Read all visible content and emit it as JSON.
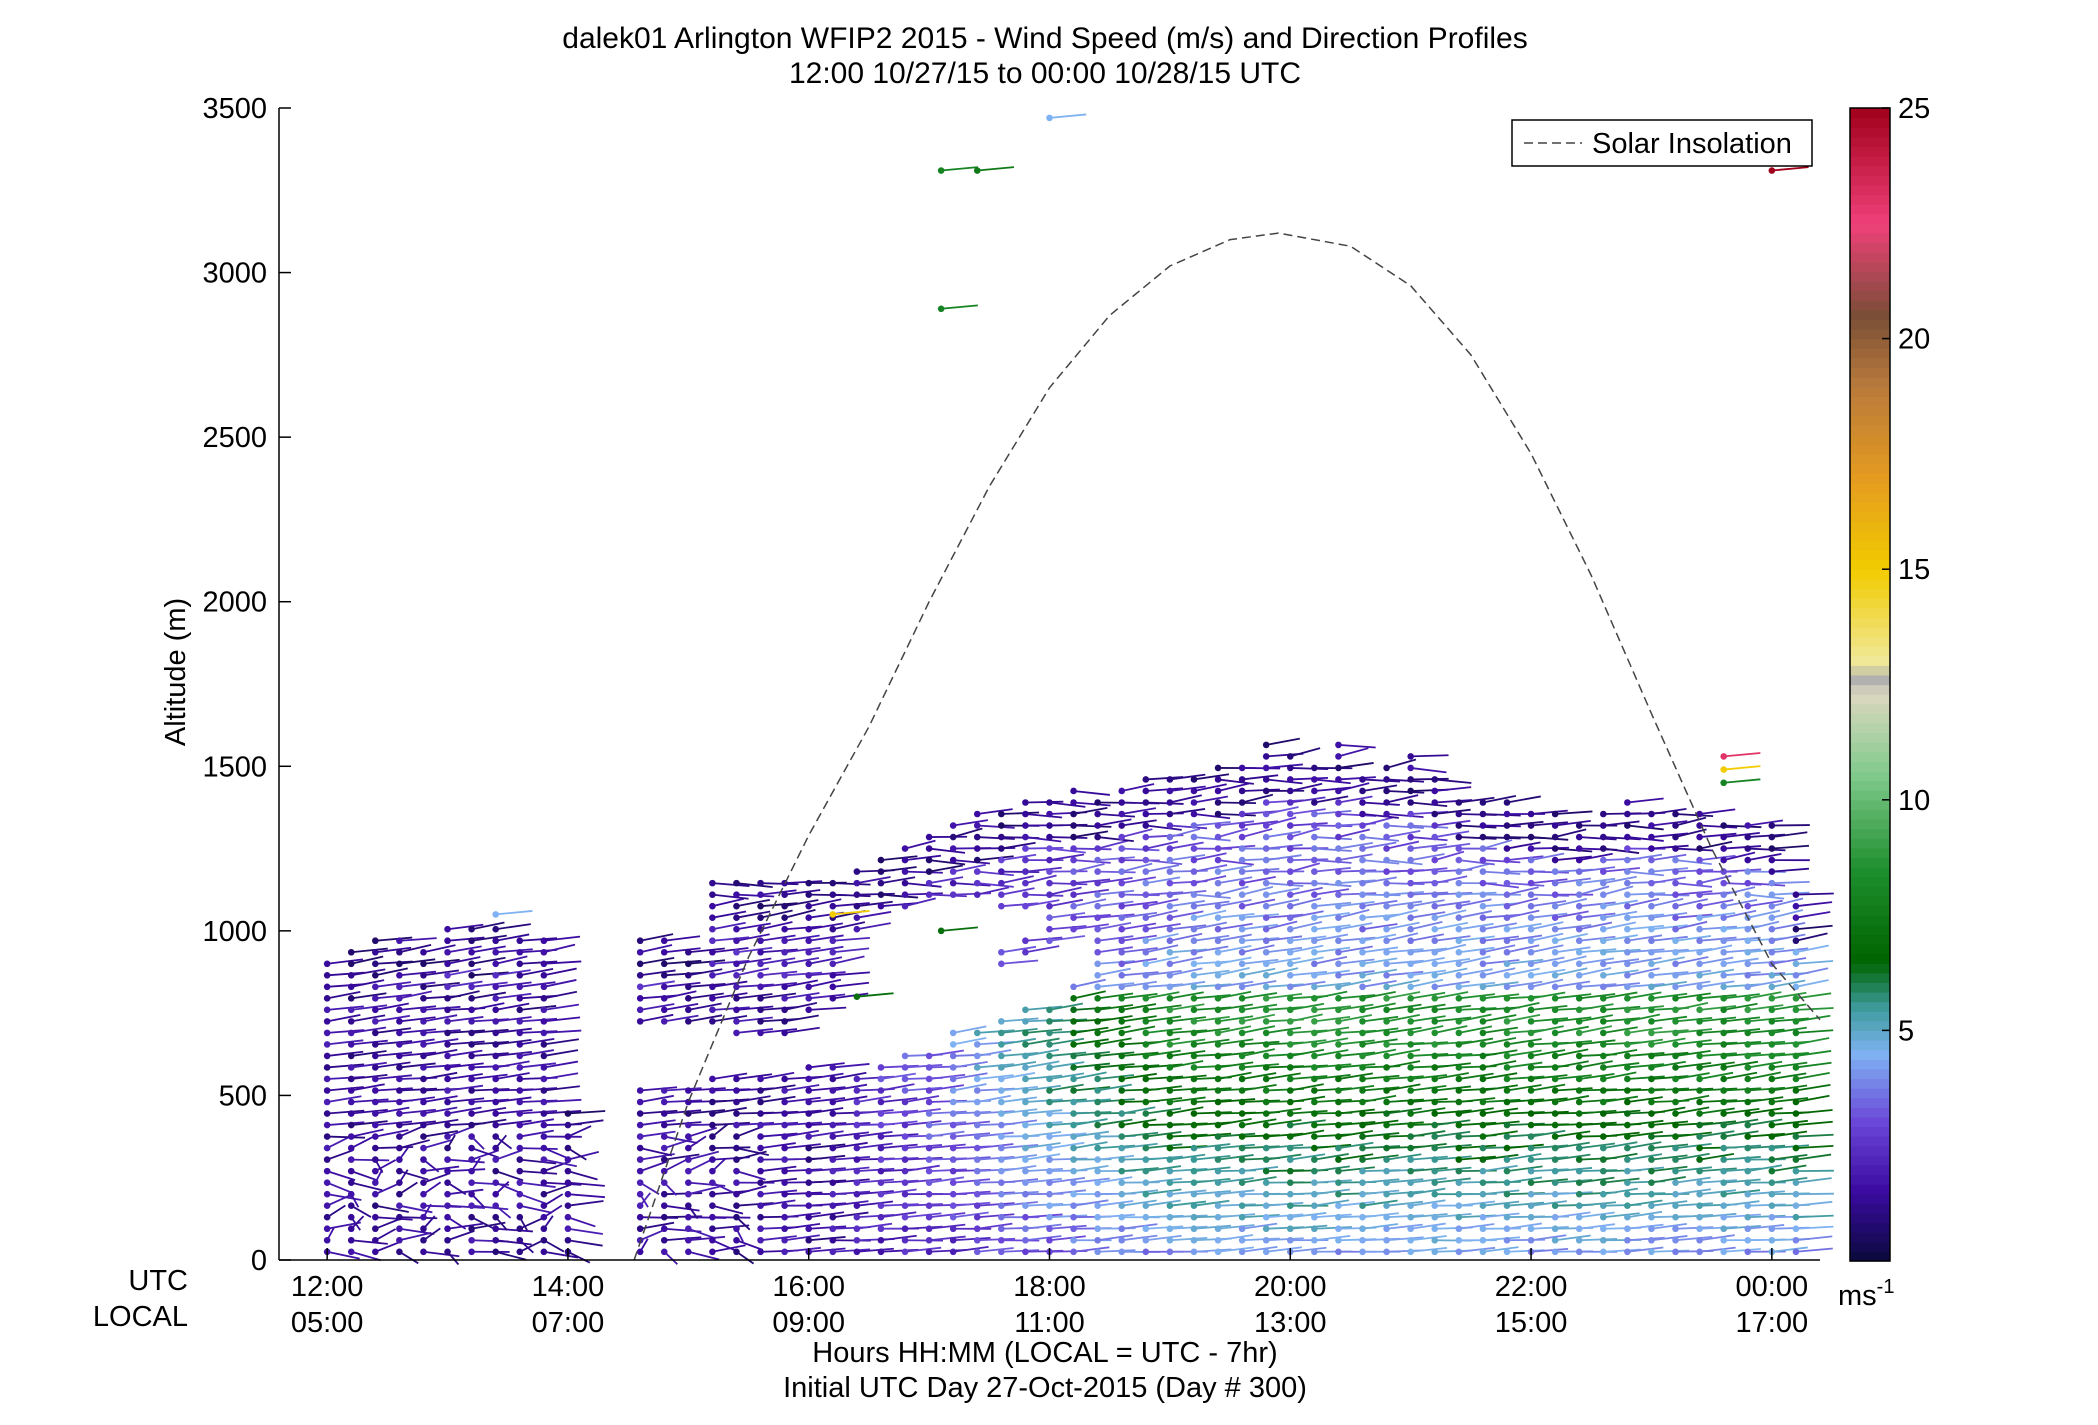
{
  "chart_data": {
    "type": "wind barb profile (scatter)",
    "title_line1": "dalek01 Arlington WFIP2 2015 - Wind Speed (m/s) and Direction Profiles",
    "title_line2": "12:00 10/27/15 to 00:00 10/28/15  UTC",
    "ylabel": "Altitude (m)",
    "xlabel_line1": "Hours HH:MM  (LOCAL = UTC - 7hr)",
    "xlabel_line2": "Initial UTC Day 27-Oct-2015 (Day # 300)",
    "ylim": [
      0,
      3500
    ],
    "xlim_hours_utc": [
      11.6,
      24.4
    ],
    "y_ticks": [
      {
        "value": 0,
        "label": "0"
      },
      {
        "value": 500,
        "label": "500"
      },
      {
        "value": 1000,
        "label": "1000"
      },
      {
        "value": 1500,
        "label": "1500"
      },
      {
        "value": 2000,
        "label": "2000"
      },
      {
        "value": 2500,
        "label": "2500"
      },
      {
        "value": 3000,
        "label": "3000"
      },
      {
        "value": 3500,
        "label": "3500"
      }
    ],
    "x_row_labels": {
      "utc": "UTC",
      "local": "LOCAL"
    },
    "x_ticks": [
      {
        "value": 12,
        "utc": "12:00",
        "local": "05:00"
      },
      {
        "value": 14,
        "utc": "14:00",
        "local": "07:00"
      },
      {
        "value": 16,
        "utc": "16:00",
        "local": "09:00"
      },
      {
        "value": 18,
        "utc": "18:00",
        "local": "11:00"
      },
      {
        "value": 20,
        "utc": "20:00",
        "local": "13:00"
      },
      {
        "value": 22,
        "utc": "22:00",
        "local": "15:00"
      },
      {
        "value": 24,
        "utc": "00:00",
        "local": "17:00"
      }
    ],
    "legend": {
      "label": "Solar Insolation",
      "location": "top-right",
      "line_style": "dashed"
    },
    "colorbar": {
      "range": [
        0,
        25
      ],
      "ticks": [
        {
          "value": 5,
          "label": "5"
        },
        {
          "value": 10,
          "label": "10"
        },
        {
          "value": 15,
          "label": "15"
        },
        {
          "value": 20,
          "label": "20"
        },
        {
          "value": 25,
          "label": "25"
        }
      ],
      "unit_label": "ms",
      "unit_exponent": "-1",
      "stops": [
        {
          "v": 0,
          "color": "#0a0a3c"
        },
        {
          "v": 1.5,
          "color": "#3a0aa0"
        },
        {
          "v": 3,
          "color": "#6a45d8"
        },
        {
          "v": 4.5,
          "color": "#7fb2f2"
        },
        {
          "v": 5.5,
          "color": "#3c9a9a"
        },
        {
          "v": 6.5,
          "color": "#006400"
        },
        {
          "v": 8.5,
          "color": "#1e8f2e"
        },
        {
          "v": 10.5,
          "color": "#7ec98a"
        },
        {
          "v": 12.3,
          "color": "#dcd8c0"
        },
        {
          "v": 12.6,
          "color": "#b0b0b0"
        },
        {
          "v": 13,
          "color": "#f0e898"
        },
        {
          "v": 15,
          "color": "#f2cc00"
        },
        {
          "v": 17,
          "color": "#e49a20"
        },
        {
          "v": 19,
          "color": "#b87a3c"
        },
        {
          "v": 20.5,
          "color": "#7a4e36"
        },
        {
          "v": 22.5,
          "color": "#f0407a"
        },
        {
          "v": 25,
          "color": "#a0001a"
        }
      ]
    },
    "solar_insolation_curve": {
      "peak_hour_utc": 19.9,
      "peak_altitude": 3120,
      "points": [
        [
          14.55,
          0
        ],
        [
          15.0,
          480
        ],
        [
          15.5,
          920
        ],
        [
          16.0,
          1290
        ],
        [
          16.5,
          1620
        ],
        [
          17.0,
          2000
        ],
        [
          17.5,
          2350
        ],
        [
          18.0,
          2650
        ],
        [
          18.5,
          2870
        ],
        [
          19.0,
          3020
        ],
        [
          19.5,
          3100
        ],
        [
          19.9,
          3120
        ],
        [
          20.5,
          3080
        ],
        [
          21.0,
          2960
        ],
        [
          21.5,
          2750
        ],
        [
          22.0,
          2450
        ],
        [
          22.5,
          2080
        ],
        [
          23.0,
          1660
        ],
        [
          23.5,
          1250
        ],
        [
          24.0,
          900
        ],
        [
          24.4,
          730
        ]
      ]
    },
    "wind_profiles": [
      {
        "time": 12.0,
        "top": 910,
        "gaps": []
      },
      {
        "time": 12.2,
        "top": 940,
        "gaps": []
      },
      {
        "time": 12.4,
        "top": 980,
        "gaps": []
      },
      {
        "time": 12.6,
        "top": 990,
        "gaps": []
      },
      {
        "time": 12.8,
        "top": 960,
        "gaps": []
      },
      {
        "time": 13.0,
        "top": 1020,
        "gaps": []
      },
      {
        "time": 13.2,
        "top": 1010,
        "gaps": []
      },
      {
        "time": 13.4,
        "top": 1020,
        "gaps": []
      },
      {
        "time": 13.6,
        "top": 990,
        "gaps": []
      },
      {
        "time": 13.8,
        "top": 990,
        "gaps": []
      },
      {
        "time": 14.0,
        "top": 450,
        "gaps": []
      },
      {
        "time": 14.6,
        "top": 980,
        "gaps": [
          [
            520,
            700
          ]
        ]
      },
      {
        "time": 14.8,
        "top": 970,
        "gaps": [
          [
            520,
            700
          ]
        ]
      },
      {
        "time": 15.0,
        "top": 950,
        "gaps": [
          [
            540,
            700
          ]
        ]
      },
      {
        "time": 15.2,
        "top": 1160,
        "gaps": [
          [
            550,
            700
          ]
        ]
      },
      {
        "time": 15.4,
        "top": 1160,
        "gaps": [
          [
            560,
            690
          ]
        ]
      },
      {
        "time": 15.6,
        "top": 1160,
        "gaps": [
          [
            570,
            690
          ]
        ]
      },
      {
        "time": 15.8,
        "top": 1160,
        "gaps": [
          [
            580,
            690
          ]
        ]
      },
      {
        "time": 16.0,
        "top": 1150,
        "gaps": [
          [
            600,
            740
          ]
        ]
      },
      {
        "time": 16.2,
        "top": 1150,
        "gaps": [
          [
            600,
            780
          ]
        ]
      },
      {
        "time": 16.4,
        "top": 1180,
        "gaps": [
          [
            580,
            1000
          ]
        ]
      },
      {
        "time": 16.6,
        "top": 1230,
        "gaps": [
          [
            600,
            1050
          ]
        ]
      },
      {
        "time": 16.8,
        "top": 1280,
        "gaps": [
          [
            620,
            1070
          ]
        ]
      },
      {
        "time": 17.0,
        "top": 1300,
        "gaps": [
          [
            650,
            1080
          ]
        ]
      },
      {
        "time": 17.2,
        "top": 1340,
        "gaps": [
          [
            690,
            1090
          ]
        ]
      },
      {
        "time": 17.4,
        "top": 1360,
        "gaps": [
          [
            720,
            1080
          ]
        ]
      },
      {
        "time": 17.6,
        "top": 1380,
        "gaps": [
          [
            740,
            900
          ],
          [
            950,
            1060
          ]
        ]
      },
      {
        "time": 17.8,
        "top": 1400,
        "gaps": [
          [
            760,
            920
          ],
          [
            980,
            1060
          ]
        ]
      },
      {
        "time": 18.0,
        "top": 1420,
        "gaps": [
          [
            790,
            950
          ]
        ]
      },
      {
        "time": 18.2,
        "top": 1430,
        "gaps": [
          [
            830,
            980
          ]
        ]
      },
      {
        "time": 18.4,
        "top": 1420,
        "gaps": []
      },
      {
        "time": 18.6,
        "top": 1440,
        "gaps": []
      },
      {
        "time": 18.8,
        "top": 1460,
        "gaps": []
      },
      {
        "time": 19.0,
        "top": 1470,
        "gaps": []
      },
      {
        "time": 19.2,
        "top": 1480,
        "gaps": []
      },
      {
        "time": 19.4,
        "top": 1500,
        "gaps": []
      },
      {
        "time": 19.6,
        "top": 1520,
        "gaps": []
      },
      {
        "time": 19.8,
        "top": 1570,
        "gaps": []
      },
      {
        "time": 20.0,
        "top": 1550,
        "gaps": []
      },
      {
        "time": 20.2,
        "top": 1520,
        "gaps": []
      },
      {
        "time": 20.4,
        "top": 1570,
        "gaps": []
      },
      {
        "time": 20.6,
        "top": 1490,
        "gaps": []
      },
      {
        "time": 20.8,
        "top": 1500,
        "gaps": []
      },
      {
        "time": 21.0,
        "top": 1530,
        "gaps": []
      },
      {
        "time": 21.2,
        "top": 1480,
        "gaps": []
      },
      {
        "time": 21.4,
        "top": 1420,
        "gaps": []
      },
      {
        "time": 21.6,
        "top": 1400,
        "gaps": []
      },
      {
        "time": 21.8,
        "top": 1390,
        "gaps": []
      },
      {
        "time": 22.0,
        "top": 1380,
        "gaps": []
      },
      {
        "time": 22.2,
        "top": 1360,
        "gaps": []
      },
      {
        "time": 22.4,
        "top": 1340,
        "gaps": []
      },
      {
        "time": 22.6,
        "top": 1370,
        "gaps": []
      },
      {
        "time": 22.8,
        "top": 1400,
        "gaps": []
      },
      {
        "time": 23.0,
        "top": 1370,
        "gaps": []
      },
      {
        "time": 23.2,
        "top": 1370,
        "gaps": []
      },
      {
        "time": 23.4,
        "top": 1370,
        "gaps": []
      },
      {
        "time": 23.6,
        "top": 1330,
        "gaps": []
      },
      {
        "time": 23.8,
        "top": 1340,
        "gaps": []
      },
      {
        "time": 24.0,
        "top": 1320,
        "gaps": []
      },
      {
        "time": 24.2,
        "top": 1110,
        "gaps": []
      }
    ],
    "isolated_barbs": [
      {
        "time": 13.4,
        "altitude": 1050,
        "speed": 4.5
      },
      {
        "time": 16.2,
        "altitude": 1050,
        "speed": 15
      },
      {
        "time": 16.4,
        "altitude": 800,
        "speed": 7
      },
      {
        "time": 17.1,
        "altitude": 1000,
        "speed": 7
      },
      {
        "time": 17.1,
        "altitude": 3310,
        "speed": 8
      },
      {
        "time": 17.4,
        "altitude": 3310,
        "speed": 7.5
      },
      {
        "time": 17.1,
        "altitude": 2890,
        "speed": 8
      },
      {
        "time": 18.0,
        "altitude": 3470,
        "speed": 4.5
      },
      {
        "time": 23.6,
        "altitude": 1530,
        "speed": 23
      },
      {
        "time": 23.6,
        "altitude": 1490,
        "speed": 15
      },
      {
        "time": 23.6,
        "altitude": 1450,
        "speed": 8
      },
      {
        "time": 24.0,
        "altitude": 3310,
        "speed": 25
      }
    ]
  }
}
